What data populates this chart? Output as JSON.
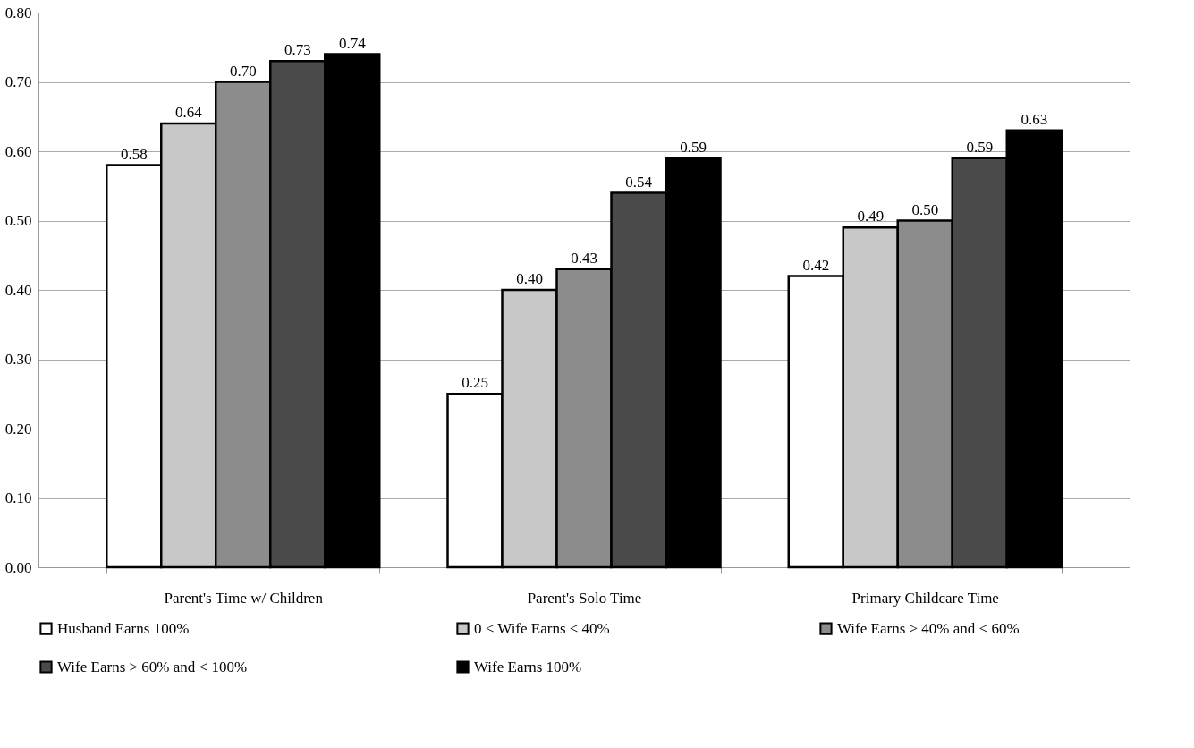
{
  "chart_data": {
    "type": "bar",
    "categories": [
      "Parent's Time w/ Children",
      "Parent's Solo Time",
      "Primary Childcare Time"
    ],
    "series": [
      {
        "name": "Husband Earns 100%",
        "color": "#ffffff",
        "values": [
          0.58,
          0.25,
          0.42
        ],
        "value_labels": [
          "0.58",
          "0.25",
          "0.42"
        ]
      },
      {
        "name": "0 < Wife Earns < 40%",
        "color": "#c8c8c8",
        "values": [
          0.64,
          0.4,
          0.49
        ],
        "value_labels": [
          "0.64",
          "0.40",
          "0.49"
        ]
      },
      {
        "name": "Wife Earns > 40% and < 60%",
        "color": "#8c8c8c",
        "values": [
          0.7,
          0.43,
          0.5
        ],
        "value_labels": [
          "0.70",
          "0.43",
          "0.50"
        ]
      },
      {
        "name": "Wife Earns > 60% and < 100%",
        "color": "#4a4a4a",
        "values": [
          0.73,
          0.54,
          0.59
        ],
        "value_labels": [
          "0.73",
          "0.54",
          "0.59"
        ]
      },
      {
        "name": "Wife Earns 100%",
        "color": "#000000",
        "values": [
          0.74,
          0.59,
          0.63
        ],
        "value_labels": [
          "0.74",
          "0.59",
          "0.63"
        ]
      }
    ],
    "ylim": [
      0,
      0.8
    ],
    "yticks": [
      {
        "value": 0,
        "label": "0.00"
      },
      {
        "value": 0.1,
        "label": "0.10"
      },
      {
        "value": 0.2,
        "label": "0.20"
      },
      {
        "value": 0.3,
        "label": "0.30"
      },
      {
        "value": 0.4,
        "label": "0.40"
      },
      {
        "value": 0.5,
        "label": "0.50"
      },
      {
        "value": 0.6,
        "label": "0.60"
      },
      {
        "value": 0.7,
        "label": "0.70"
      },
      {
        "value": 0.8,
        "label": "0.80"
      }
    ],
    "grid": "y",
    "legend": "bottom"
  }
}
